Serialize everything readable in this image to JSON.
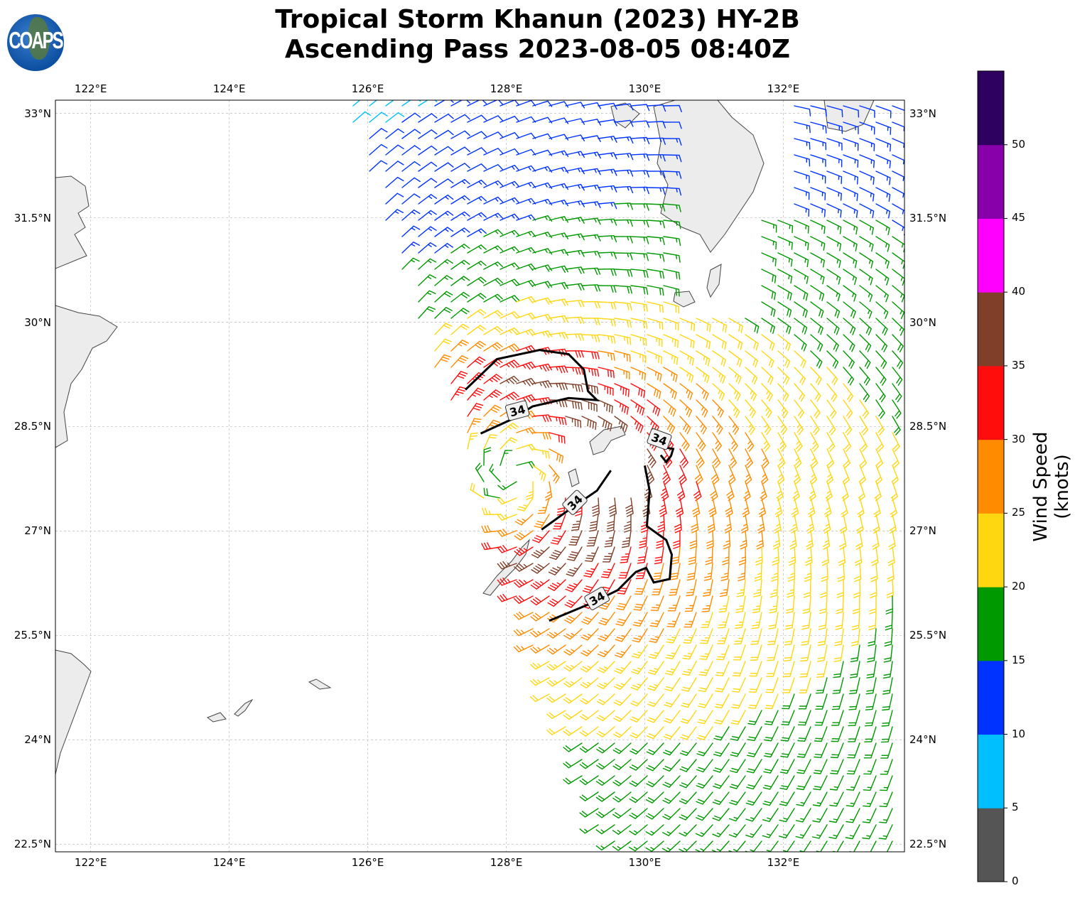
{
  "logo": {
    "text": "COAPS"
  },
  "title": {
    "line1": "Tropical Storm Khanun (2023) HY-2B",
    "line2": "Ascending Pass 2023-08-05 08:40Z"
  },
  "axes": {
    "lon_ticks": [
      {
        "value": 122,
        "label": "122°E"
      },
      {
        "value": 124,
        "label": "124°E"
      },
      {
        "value": 126,
        "label": "126°E"
      },
      {
        "value": 128,
        "label": "128°E"
      },
      {
        "value": 130,
        "label": "130°E"
      },
      {
        "value": 132,
        "label": "132°E"
      }
    ],
    "lat_ticks": [
      {
        "value": 33,
        "label": "33°N"
      },
      {
        "value": 31.5,
        "label": "31.5°N"
      },
      {
        "value": 30,
        "label": "30°N"
      },
      {
        "value": 28.5,
        "label": "28.5°N"
      },
      {
        "value": 27,
        "label": "27°N"
      },
      {
        "value": 25.5,
        "label": "25.5°N"
      },
      {
        "value": 24,
        "label": "24°N"
      },
      {
        "value": 22.5,
        "label": "22.5°N"
      }
    ],
    "lon_range": [
      121.49,
      133.75
    ],
    "lat_range": [
      22.39,
      33.19
    ]
  },
  "colorbar": {
    "label": "Wind Speed (knots)",
    "ticks": [
      "0",
      "5",
      "10",
      "15",
      "20",
      "25",
      "30",
      "35",
      "40",
      "45",
      "50"
    ],
    "bins": [
      0,
      5,
      10,
      15,
      20,
      25,
      30,
      35,
      40,
      45,
      50,
      55
    ],
    "colors": [
      "#555555",
      "#00bfff",
      "#0033ff",
      "#009900",
      "#ffd711",
      "#ff8c00",
      "#ff0d0d",
      "#7f3f28",
      "#ff00ff",
      "#8800aa",
      "#2e0060"
    ]
  },
  "chart_data": {
    "type": "wind-barb-map",
    "storm_center": {
      "lon": 128.13,
      "lat": 27.79
    },
    "contour_level": "34",
    "contours": [
      [
        [
          127.41,
          29.03
        ],
        [
          127.87,
          29.47
        ],
        [
          128.48,
          29.6
        ],
        [
          128.9,
          29.54
        ],
        [
          129.12,
          29.32
        ],
        [
          129.18,
          29.01
        ],
        [
          129.31,
          28.88
        ],
        [
          128.9,
          28.91
        ],
        [
          128.38,
          28.79
        ],
        [
          128.07,
          28.6
        ],
        [
          127.63,
          28.4
        ]
      ],
      [
        [
          130.1,
          28.28
        ],
        [
          130.28,
          28.2
        ],
        [
          130.41,
          28.18
        ],
        [
          130.38,
          28.08
        ],
        [
          130.31,
          27.99
        ],
        [
          130.23,
          28.09
        ]
      ],
      [
        [
          128.51,
          27.02
        ],
        [
          128.9,
          27.3
        ],
        [
          129.31,
          27.58
        ],
        [
          129.51,
          27.87
        ]
      ],
      [
        [
          130.0,
          27.94
        ],
        [
          130.07,
          27.58
        ],
        [
          130.03,
          27.07
        ],
        [
          130.31,
          26.87
        ],
        [
          130.39,
          26.66
        ],
        [
          130.36,
          26.31
        ],
        [
          130.13,
          26.26
        ],
        [
          130.02,
          26.47
        ],
        [
          129.87,
          26.41
        ],
        [
          129.61,
          26.15
        ],
        [
          129.2,
          25.95
        ],
        [
          128.62,
          25.71
        ]
      ]
    ],
    "contour_labels": [
      {
        "lon": 128.16,
        "lat": 28.73,
        "text": "34",
        "angle": -15
      },
      {
        "lon": 130.21,
        "lat": 28.32,
        "text": "34",
        "angle": 20
      },
      {
        "lon": 128.99,
        "lat": 27.41,
        "text": "34",
        "angle": -45
      },
      {
        "lon": 129.31,
        "lat": 26.03,
        "text": "34",
        "angle": -30
      }
    ]
  }
}
